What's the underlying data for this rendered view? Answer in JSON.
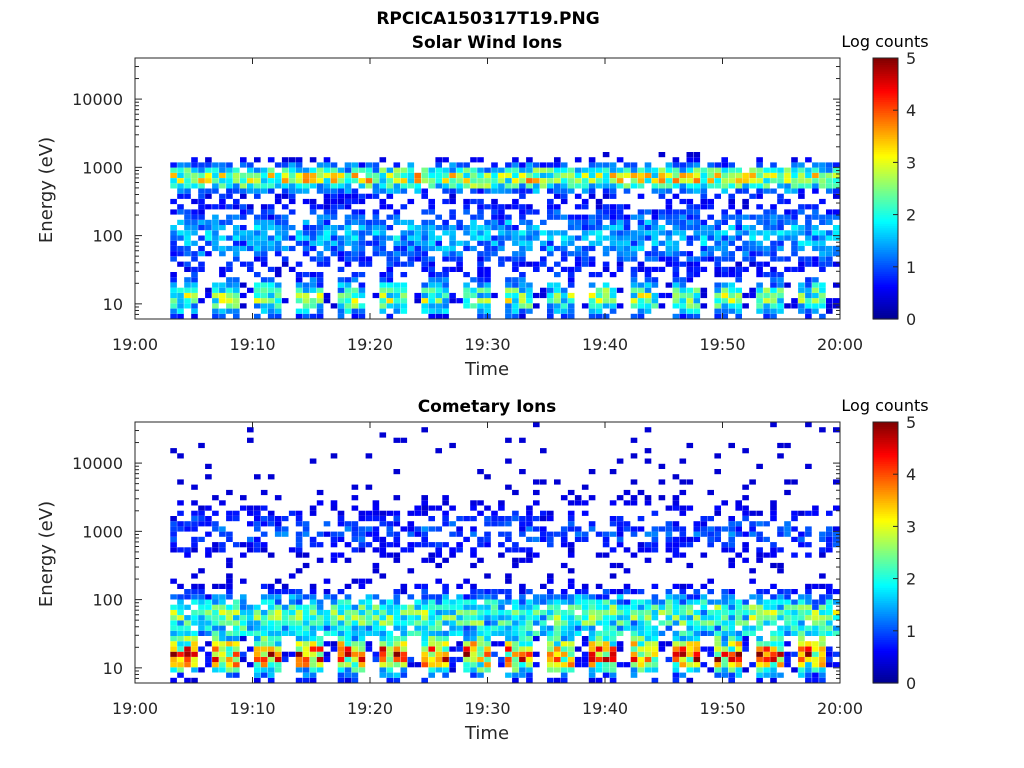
{
  "figure": {
    "title": "RPCICA150317T19.PNG"
  },
  "colormap": [
    "#00008f",
    "#0000ff",
    "#0080ff",
    "#00ffff",
    "#80ff80",
    "#ffff00",
    "#ff8000",
    "#ff0000",
    "#800000"
  ],
  "chart_data": [
    {
      "type": "heatmap",
      "title": "Solar Wind Ions",
      "xlabel": "Time",
      "ylabel": "Energy (eV)",
      "x_ticks": [
        "19:00",
        "19:10",
        "19:20",
        "19:30",
        "19:40",
        "19:50",
        "20:00"
      ],
      "x_range_minutes": [
        0,
        60
      ],
      "y_scale": "log",
      "y_ticks": [
        "10",
        "100",
        "1000",
        "10000"
      ],
      "y_range_eV": [
        6,
        40000
      ],
      "colorbar": {
        "label": "Log counts",
        "range": [
          0,
          5
        ],
        "ticks": [
          "0",
          "1",
          "2",
          "3",
          "4",
          "5"
        ]
      },
      "spectrum": {
        "time_start_min": 3,
        "time_end_min": 60,
        "n_time_bins": 96,
        "n_energy_bins": 50,
        "low_energy_peak_eV": 12,
        "low_energy_peak_log_counts": 2.2,
        "solar_wind_peak_eV": 700,
        "solar_wind_peak_log_counts": 2.6,
        "high_energy_sparse_level": 0.3
      }
    },
    {
      "type": "heatmap",
      "title": "Cometary Ions",
      "xlabel": "Time",
      "ylabel": "Energy (eV)",
      "x_ticks": [
        "19:00",
        "19:10",
        "19:20",
        "19:30",
        "19:40",
        "19:50",
        "20:00"
      ],
      "x_range_minutes": [
        0,
        60
      ],
      "y_scale": "log",
      "y_ticks": [
        "10",
        "100",
        "1000",
        "10000"
      ],
      "y_range_eV": [
        6,
        40000
      ],
      "colorbar": {
        "label": "Log counts",
        "range": [
          0,
          5
        ],
        "ticks": [
          "0",
          "1",
          "2",
          "3",
          "4",
          "5"
        ]
      },
      "spectrum": {
        "time_start_min": 3,
        "time_end_min": 60,
        "n_time_bins": 96,
        "n_energy_bins": 50,
        "low_energy_peak_eV": 15,
        "low_energy_peak_log_counts": 3.4,
        "mid_energy_band_eV": 60,
        "mid_energy_band_log_counts": 2.0,
        "high_energy_sparse_level": 0.4
      }
    }
  ]
}
